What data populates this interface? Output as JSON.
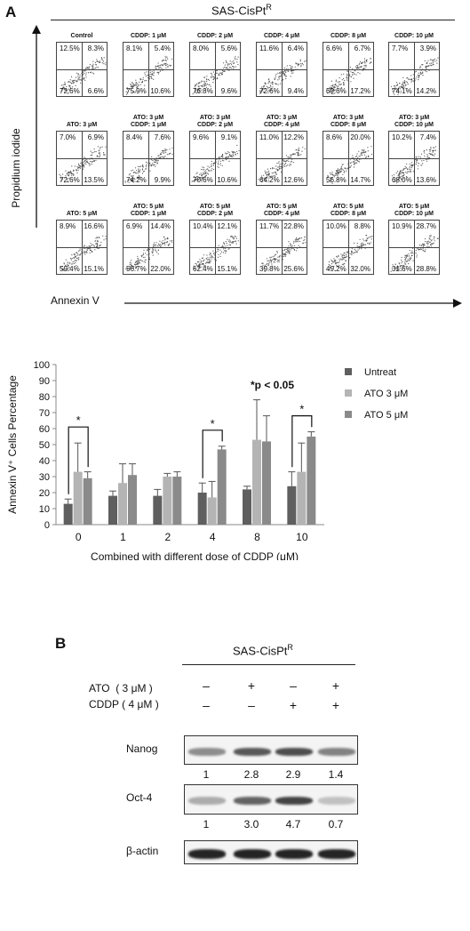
{
  "panel_a": {
    "letter": "A",
    "title_main": "SAS-CisPt",
    "title_sup": "R",
    "y_axis_label": "Propidium iodide",
    "x_axis_label": "Annexin V",
    "flow_rows": [
      [
        {
          "label": [
            "Control"
          ],
          "ul": "12.5%",
          "ur": "8.3%",
          "ll": "72.6%",
          "lr": "6.6%"
        },
        {
          "label": [
            "CDDP: 1 μM"
          ],
          "ul": "8.1%",
          "ur": "5.4%",
          "ll": "75.9%",
          "lr": "10.6%"
        },
        {
          "label": [
            "CDDP: 2 μM"
          ],
          "ul": "8.0%",
          "ur": "5.6%",
          "ll": "76.8%",
          "lr": "9.6%"
        },
        {
          "label": [
            "CDDP: 4 μM"
          ],
          "ul": "11.6%",
          "ur": "6.4%",
          "ll": "72.6%",
          "lr": "9.4%"
        },
        {
          "label": [
            "CDDP: 8 μM"
          ],
          "ul": "6.6%",
          "ur": "6.7%",
          "ll": "69.6%",
          "lr": "17.2%"
        },
        {
          "label": [
            "CDDP: 10 μM"
          ],
          "ul": "7.7%",
          "ur": "3.9%",
          "ll": "74.1%",
          "lr": "14.2%"
        }
      ],
      [
        {
          "label": [
            "ATO: 3 μM"
          ],
          "ul": "7.0%",
          "ur": "6.9%",
          "ll": "72.6%",
          "lr": "13.5%"
        },
        {
          "label": [
            "ATO: 3 μM",
            "CDDP: 1 μM"
          ],
          "ul": "8.4%",
          "ur": "7.6%",
          "ll": "74.2%",
          "lr": "9.9%"
        },
        {
          "label": [
            "ATO: 3 μM",
            "CDDP: 2 μM"
          ],
          "ul": "9.6%",
          "ur": "9.1%",
          "ll": "70.6%",
          "lr": "10.6%"
        },
        {
          "label": [
            "ATO: 3 μM",
            "CDDP: 4 μM"
          ],
          "ul": "11.0%",
          "ur": "12.2%",
          "ll": "64.2%",
          "lr": "12.6%"
        },
        {
          "label": [
            "ATO: 3 μM",
            "CDDP: 8 μM"
          ],
          "ul": "8.6%",
          "ur": "20.0%",
          "ll": "56.8%",
          "lr": "14.7%"
        },
        {
          "label": [
            "ATO: 3 μM",
            "CDDP: 10 μM"
          ],
          "ul": "10.2%",
          "ur": "7.4%",
          "ll": "68.0%",
          "lr": "13.6%"
        }
      ],
      [
        {
          "label": [
            "ATO: 5 μM"
          ],
          "ul": "8.9%",
          "ur": "16.6%",
          "ll": "59.4%",
          "lr": "15.1%"
        },
        {
          "label": [
            "ATO: 5 μM",
            "CDDP: 1 μM"
          ],
          "ul": "6.9%",
          "ur": "14.4%",
          "ll": "56.7%",
          "lr": "22.0%"
        },
        {
          "label": [
            "ATO: 5 μM",
            "CDDP: 2 μM"
          ],
          "ul": "10.4%",
          "ur": "12.1%",
          "ll": "62.4%",
          "lr": "15.1%"
        },
        {
          "label": [
            "ATO: 5 μM",
            "CDDP: 4 μM"
          ],
          "ul": "11.7%",
          "ur": "22.8%",
          "ll": "39.8%",
          "lr": "25.6%"
        },
        {
          "label": [
            "ATO: 5 μM",
            "CDDP: 8 μM"
          ],
          "ul": "10.0%",
          "ur": "8.8%",
          "ll": "49.2%",
          "lr": "32.0%"
        },
        {
          "label": [
            "ATO: 5 μM",
            "CDDP: 10 μM"
          ],
          "ul": "10.9%",
          "ur": "28.7%",
          "ll": "31.6%",
          "lr": "28.8%"
        }
      ]
    ]
  },
  "chart_data": {
    "type": "bar",
    "ylabel": "Annexin V⁺ Cells Percentage",
    "xlabel": "Combined with different dose of CDDP (μM)",
    "categories": [
      "0",
      "1",
      "2",
      "4",
      "8",
      "10"
    ],
    "ylim": [
      0,
      100
    ],
    "yticks": [
      0,
      10,
      20,
      30,
      40,
      50,
      60,
      70,
      80,
      90,
      100
    ],
    "legend_position": "right",
    "annotation": "*p < 0.05",
    "significance_marker": "*",
    "significant_categories": [
      "0",
      "4",
      "10"
    ],
    "series": [
      {
        "name": "Untreat",
        "color": "#5f5f5f",
        "values": [
          13,
          18,
          18,
          20,
          22,
          24
        ],
        "errors": [
          3,
          3,
          4,
          6,
          2,
          9
        ]
      },
      {
        "name": "ATO 3 μM",
        "color": "#b4b4b4",
        "values": [
          33,
          26,
          30,
          17,
          53,
          33
        ],
        "errors": [
          18,
          12,
          2,
          10,
          25,
          18
        ]
      },
      {
        "name": "ATO 5 μM",
        "color": "#8a8a8a",
        "values": [
          29,
          31,
          30,
          47,
          52,
          55
        ],
        "errors": [
          4,
          7,
          3,
          2,
          16,
          3
        ]
      }
    ]
  },
  "panel_b": {
    "letter": "B",
    "title_main": "SAS-CisPt",
    "title_sup": "R",
    "treatments": [
      {
        "label": "ATO  ( 3 μM )",
        "signs": [
          "–",
          "+",
          "–",
          "+"
        ]
      },
      {
        "label": "CDDP ( 4 μM )",
        "signs": [
          "–",
          "–",
          "+",
          "+"
        ]
      }
    ],
    "blots": [
      {
        "name": "Nanog",
        "values": [
          "1",
          "2.8",
          "2.9",
          "1.4"
        ],
        "intensities": [
          0.45,
          0.7,
          0.75,
          0.5
        ]
      },
      {
        "name": "Oct-4",
        "values": [
          "1",
          "3.0",
          "4.7",
          "0.7"
        ],
        "intensities": [
          0.3,
          0.65,
          0.8,
          0.2
        ]
      },
      {
        "name": "β-actin",
        "values": [],
        "intensities": [
          0.95,
          0.95,
          0.95,
          0.95
        ]
      }
    ]
  }
}
